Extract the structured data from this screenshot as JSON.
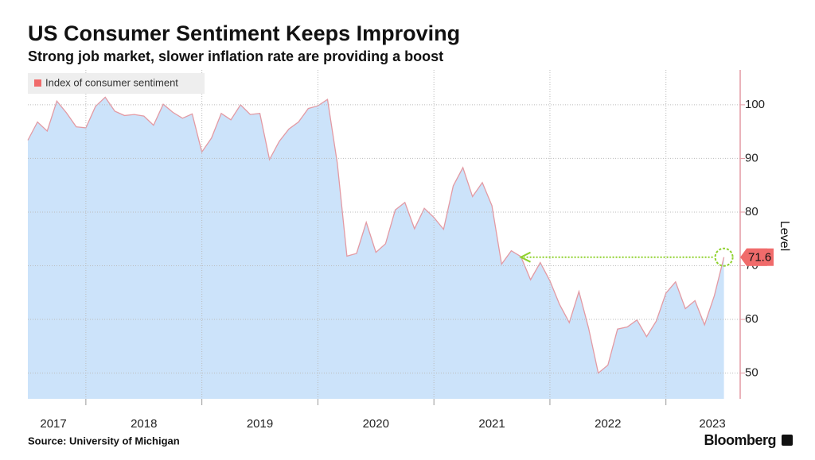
{
  "chart_data": {
    "type": "area",
    "title": "US Consumer Sentiment Keeps Improving",
    "subtitle": "Strong job market, slower inflation rate are providing a boost",
    "y_axis_label": "Level",
    "source": "Source: University of Michigan",
    "brand": "Bloomberg",
    "legend_position": "top-left",
    "grid": true,
    "series": [
      {
        "name": "Index of consumer sentiment",
        "color": "#e39aa3",
        "fill": "#cce3fa",
        "x": [
          2017.5,
          2017.583,
          2017.667,
          2017.75,
          2017.833,
          2017.917,
          2018,
          2018.083,
          2018.167,
          2018.25,
          2018.333,
          2018.417,
          2018.5,
          2018.583,
          2018.667,
          2018.75,
          2018.833,
          2018.917,
          2019,
          2019.083,
          2019.167,
          2019.25,
          2019.333,
          2019.417,
          2019.5,
          2019.583,
          2019.667,
          2019.75,
          2019.833,
          2019.917,
          2020,
          2020.083,
          2020.167,
          2020.25,
          2020.333,
          2020.417,
          2020.5,
          2020.583,
          2020.667,
          2020.75,
          2020.833,
          2020.917,
          2021,
          2021.083,
          2021.167,
          2021.25,
          2021.333,
          2021.417,
          2021.5,
          2021.583,
          2021.667,
          2021.75,
          2021.833,
          2021.917,
          2022,
          2022.083,
          2022.167,
          2022.25,
          2022.333,
          2022.417,
          2022.5,
          2022.583,
          2022.667,
          2022.75,
          2022.833,
          2022.917,
          2023,
          2023.083,
          2023.167,
          2023.25,
          2023.333,
          2023.417,
          2023.5
        ],
        "values": [
          93.4,
          96.8,
          95.1,
          100.7,
          98.5,
          95.9,
          95.7,
          99.7,
          101.4,
          98.8,
          98.0,
          98.2,
          97.9,
          96.2,
          100.1,
          98.6,
          97.5,
          98.3,
          91.2,
          93.8,
          98.4,
          97.2,
          100.0,
          98.2,
          98.4,
          89.8,
          93.2,
          95.5,
          96.8,
          99.3,
          99.8,
          101.0,
          89.1,
          71.8,
          72.3,
          78.1,
          72.5,
          74.1,
          80.4,
          81.8,
          76.9,
          80.7,
          79.0,
          76.8,
          84.9,
          88.3,
          82.9,
          85.5,
          81.2,
          70.3,
          72.8,
          71.7,
          67.4,
          70.6,
          67.2,
          62.8,
          59.4,
          65.2,
          58.4,
          50.0,
          51.5,
          58.2,
          58.6,
          59.9,
          56.8,
          59.7,
          64.9,
          67.0,
          62.0,
          63.5,
          59.0,
          64.4,
          71.6
        ]
      }
    ],
    "last_value_color": "#f06b6b",
    "annotation_color": "#8fd12d",
    "xlim": [
      2017.5,
      2023.64
    ],
    "xgrid": [
      2018,
      2019,
      2020,
      2021,
      2022,
      2023
    ],
    "xticks": [
      {
        "value": 2017.72,
        "label": "2017"
      },
      {
        "value": 2018.5,
        "label": "2018"
      },
      {
        "value": 2019.5,
        "label": "2019"
      },
      {
        "value": 2020.5,
        "label": "2020"
      },
      {
        "value": 2021.5,
        "label": "2021"
      },
      {
        "value": 2022.5,
        "label": "2022"
      },
      {
        "value": 2023.4,
        "label": "2023"
      }
    ],
    "ylim": [
      45.2,
      106.5
    ],
    "yticks": [
      50,
      60,
      70,
      80,
      90,
      100
    ]
  }
}
